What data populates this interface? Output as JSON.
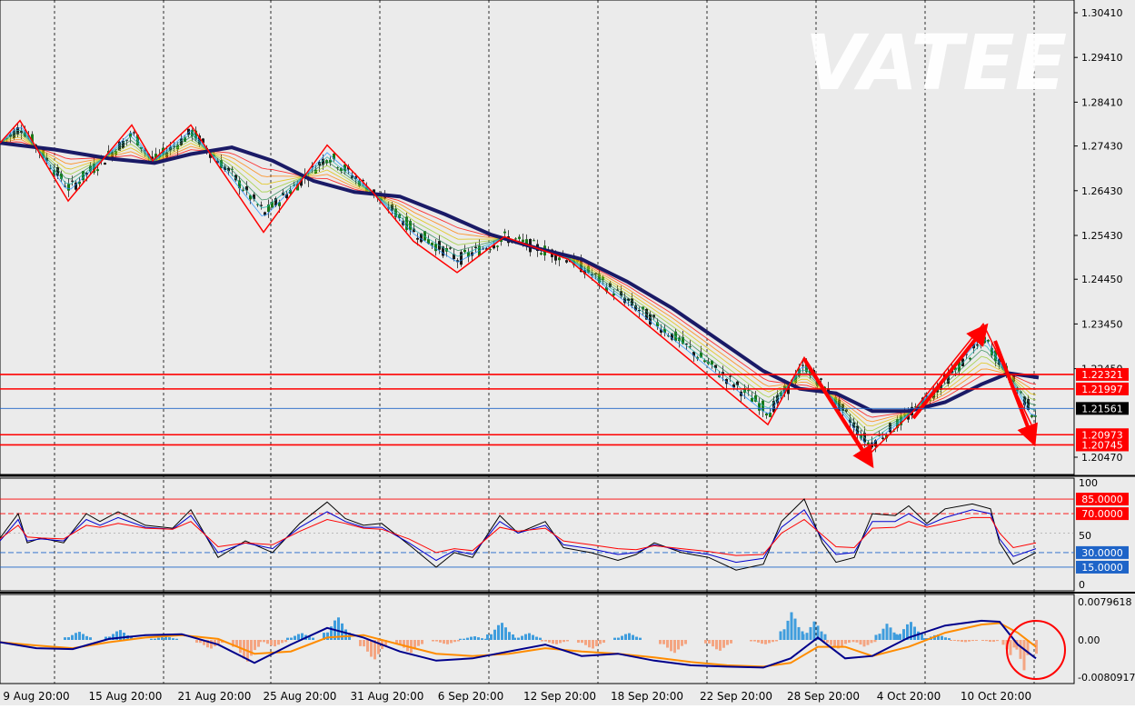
{
  "watermark": "VATEE",
  "colors": {
    "background": "#ebebeb",
    "price_up": "#1a7a1a",
    "price_down": "#1a1a1a",
    "zigzag": "#ff0000",
    "ma_slow": "#1a1a66",
    "level_red": "#ff0000",
    "level_blue": "#1e64c8",
    "rsi_black": "#000000",
    "rsi_blue": "#0000cc",
    "rsi_red": "#ff0000",
    "macd_hist_pos": "#3f9ddd",
    "macd_hist_neg": "#f4a582",
    "macd_line": "#00008b",
    "macd_signal": "#ff8c00",
    "circle": "#ff0000"
  },
  "chart_data": [
    {
      "type": "line",
      "panel": "price",
      "title": "",
      "y_ticks": [
        "1.30410",
        "1.29410",
        "1.28410",
        "1.27430",
        "1.26430",
        "1.25430",
        "1.24450",
        "1.23450",
        "1.22450",
        "1.20470"
      ],
      "ylim": [
        1.2025,
        1.3065
      ],
      "x_ticks": [
        "9 Aug 20:00",
        "15 Aug 20:00",
        "21 Aug 20:00",
        "25 Aug 20:00",
        "31 Aug 20:00",
        "6 Sep 20:00",
        "12 Sep 20:00",
        "18 Sep 20:00",
        "22 Sep 20:00",
        "28 Sep 20:00",
        "4 Oct 20:00",
        "10 Oct 20:00"
      ],
      "zigzag": {
        "x": [
          0,
          22,
          75,
          145,
          168,
          210,
          290,
          360,
          410,
          455,
          503,
          555,
          625,
          845,
          885,
          955,
          1005,
          1082,
          1135
        ],
        "y": [
          1.275,
          1.28,
          1.262,
          1.279,
          1.271,
          1.279,
          1.255,
          1.2745,
          1.264,
          1.253,
          1.246,
          1.254,
          1.249,
          1.212,
          1.227,
          1.205,
          1.215,
          1.2345,
          1.212
        ]
      },
      "ma_slow": {
        "x": [
          0,
          60,
          120,
          170,
          210,
          255,
          300,
          345,
          390,
          440,
          490,
          540,
          590,
          640,
          690,
          740,
          790,
          840,
          880,
          920,
          960,
          1000,
          1040,
          1080,
          1110,
          1143
        ],
        "y": [
          1.275,
          1.2735,
          1.2715,
          1.2705,
          1.2725,
          1.274,
          1.271,
          1.2665,
          1.264,
          1.263,
          1.259,
          1.2545,
          1.2515,
          1.249,
          1.244,
          1.238,
          1.231,
          1.224,
          1.22,
          1.219,
          1.215,
          1.215,
          1.217,
          1.221,
          1.2235,
          1.2225
        ]
      },
      "levels": [
        {
          "value": 1.22321,
          "label": "1.22321",
          "style": "red"
        },
        {
          "value": 1.21997,
          "label": "1.21997",
          "style": "red"
        },
        {
          "value": 1.21561,
          "label": "1.21561",
          "style": "current"
        },
        {
          "value": 1.20973,
          "label": "1.20973",
          "style": "red"
        },
        {
          "value": 1.20745,
          "label": "1.20745",
          "style": "red"
        }
      ]
    },
    {
      "type": "line",
      "panel": "rsi",
      "title": "",
      "ylim": [
        0,
        100
      ],
      "y_ticks": [
        "100",
        "50",
        "0"
      ],
      "levels": [
        {
          "value": 85,
          "label": "85.0000",
          "style": "red"
        },
        {
          "value": 70,
          "label": "70.0000",
          "style": "red"
        },
        {
          "value": 30,
          "label": "30.0000",
          "style": "blue"
        },
        {
          "value": 15,
          "label": "15.0000",
          "style": "blue"
        }
      ],
      "series": [
        {
          "color": "black",
          "x": [
            0,
            20,
            30,
            45,
            70,
            95,
            110,
            130,
            160,
            190,
            210,
            240,
            270,
            300,
            330,
            360,
            380,
            400,
            420,
            450,
            480,
            500,
            520,
            550,
            570,
            600,
            620,
            650,
            680,
            700,
            720,
            750,
            780,
            810,
            840,
            860,
            885,
            905,
            920,
            940,
            960,
            985,
            1000,
            1020,
            1040,
            1070,
            1090,
            1100,
            1115,
            1140
          ],
          "y": [
            45,
            70,
            40,
            45,
            40,
            70,
            62,
            72,
            58,
            55,
            74,
            25,
            42,
            30,
            60,
            82,
            65,
            58,
            60,
            38,
            15,
            30,
            25,
            68,
            50,
            62,
            35,
            30,
            22,
            28,
            40,
            30,
            25,
            12,
            18,
            62,
            85,
            40,
            20,
            25,
            70,
            68,
            78,
            60,
            75,
            80,
            75,
            40,
            18,
            30
          ]
        },
        {
          "color": "blue",
          "x": [
            0,
            20,
            30,
            45,
            70,
            95,
            110,
            130,
            160,
            190,
            210,
            240,
            270,
            300,
            330,
            360,
            380,
            400,
            420,
            450,
            480,
            500,
            520,
            550,
            570,
            600,
            620,
            650,
            680,
            700,
            720,
            750,
            780,
            810,
            840,
            860,
            885,
            905,
            920,
            940,
            960,
            985,
            1000,
            1020,
            1040,
            1070,
            1090,
            1100,
            1115,
            1140
          ],
          "y": [
            42,
            64,
            42,
            44,
            42,
            64,
            58,
            66,
            56,
            54,
            68,
            30,
            40,
            34,
            56,
            72,
            62,
            56,
            56,
            40,
            22,
            32,
            28,
            62,
            50,
            58,
            38,
            34,
            28,
            30,
            38,
            32,
            28,
            20,
            24,
            56,
            74,
            44,
            28,
            30,
            62,
            62,
            70,
            58,
            66,
            74,
            70,
            44,
            26,
            34
          ]
        },
        {
          "color": "red",
          "x": [
            0,
            20,
            30,
            45,
            70,
            95,
            110,
            130,
            160,
            190,
            210,
            240,
            270,
            300,
            330,
            360,
            380,
            400,
            420,
            450,
            480,
            500,
            520,
            550,
            570,
            600,
            620,
            650,
            680,
            700,
            720,
            750,
            780,
            810,
            840,
            860,
            885,
            905,
            920,
            940,
            960,
            985,
            1000,
            1020,
            1040,
            1070,
            1090,
            1100,
            1115,
            1140
          ],
          "y": [
            44,
            58,
            46,
            45,
            44,
            58,
            56,
            60,
            55,
            54,
            62,
            36,
            40,
            38,
            52,
            64,
            60,
            55,
            54,
            44,
            30,
            34,
            32,
            56,
            52,
            55,
            42,
            38,
            34,
            33,
            37,
            34,
            31,
            27,
            28,
            50,
            64,
            48,
            36,
            35,
            55,
            56,
            62,
            56,
            60,
            66,
            66,
            50,
            35,
            40
          ]
        }
      ]
    },
    {
      "type": "bar",
      "panel": "macd",
      "title": "",
      "ylim": [
        -0.0080917,
        0.0079618
      ],
      "y_ticks": [
        "0.0079618",
        "0.00",
        "-0.0080917"
      ],
      "histogram": {
        "x": [
          85,
          130,
          180,
          230,
          270,
          300,
          330,
          370,
          410,
          450,
          490,
          520,
          550,
          580,
          610,
          650,
          690,
          740,
          790,
          840,
          870,
          895,
          920,
          950,
          975,
          1000,
          1030,
          1060,
          1090,
          1110,
          1125,
          1140
        ],
        "y": [
          0.0018,
          0.0022,
          0.0008,
          -0.002,
          -0.005,
          -0.0015,
          0.0015,
          0.005,
          -0.0045,
          -0.003,
          -0.001,
          0.0008,
          0.0038,
          0.0015,
          -0.001,
          -0.002,
          0.0015,
          -0.003,
          -0.0025,
          -0.001,
          0.006,
          0.004,
          -0.002,
          -0.0015,
          0.0035,
          0.004,
          0.0012,
          -0.0005,
          -0.0005,
          -0.0035,
          -0.007,
          -0.006
        ]
      },
      "macd_line": {
        "x": [
          0,
          40,
          80,
          120,
          160,
          200,
          240,
          280,
          320,
          360,
          400,
          440,
          480,
          520,
          560,
          600,
          640,
          680,
          720,
          760,
          800,
          840,
          870,
          900,
          930,
          960,
          1000,
          1040,
          1080,
          1100,
          1120,
          1140
        ],
        "y": [
          -0.0005,
          -0.0018,
          -0.002,
          0.0002,
          0.001,
          0.0012,
          -0.001,
          -0.005,
          -0.001,
          0.0025,
          0.0005,
          -0.0025,
          -0.0045,
          -0.004,
          -0.0025,
          -0.001,
          -0.0035,
          -0.003,
          -0.0045,
          -0.0055,
          -0.0058,
          -0.006,
          -0.004,
          0.0005,
          -0.004,
          -0.0035,
          0.0005,
          0.003,
          0.004,
          0.0038,
          -0.001,
          -0.004
        ]
      },
      "signal_line": {
        "x": [
          0,
          40,
          80,
          120,
          160,
          200,
          240,
          280,
          320,
          360,
          400,
          440,
          480,
          520,
          560,
          600,
          640,
          680,
          720,
          760,
          800,
          840,
          870,
          900,
          930,
          960,
          1000,
          1040,
          1080,
          1100,
          1120,
          1140
        ],
        "y": [
          -0.0005,
          -0.0012,
          -0.0018,
          -0.0005,
          0.0005,
          0.001,
          0.0002,
          -0.003,
          -0.0025,
          0.0005,
          0.001,
          -0.001,
          -0.003,
          -0.0035,
          -0.003,
          -0.0018,
          -0.0025,
          -0.003,
          -0.0038,
          -0.0048,
          -0.0055,
          -0.0058,
          -0.005,
          -0.0015,
          -0.0015,
          -0.0035,
          -0.0015,
          0.0015,
          0.0032,
          0.0035,
          0.0015,
          -0.0015
        ]
      }
    }
  ]
}
